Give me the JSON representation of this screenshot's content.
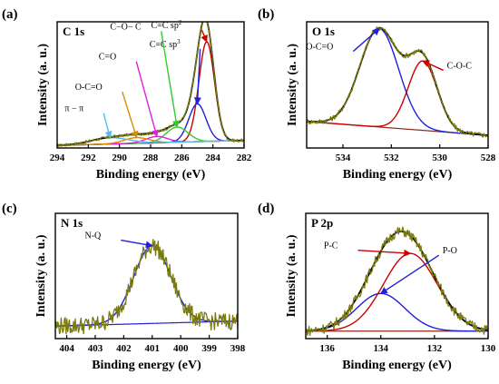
{
  "chart_data": [
    {
      "panel_label": "(a)",
      "type": "line",
      "title": "C 1s",
      "xlabel": "Binding energy (eV)",
      "ylabel": "Intensity (a. u.)",
      "xlim": [
        294,
        282
      ],
      "x_reversed": true,
      "x_ticks": [
        294,
        292,
        290,
        288,
        286,
        284,
        282
      ],
      "ylim": [
        0,
        1
      ],
      "series": [
        {
          "name": "C=C sp2",
          "color": "#cc0000",
          "type": "gaussian",
          "center": 284.4,
          "sigma": 0.5,
          "amplitude": 0.79
        },
        {
          "name": "C=C sp3",
          "color": "#1f1fdc",
          "type": "gaussian",
          "center": 285.0,
          "sigma": 0.55,
          "amplitude": 0.3
        },
        {
          "name": "C-O-C",
          "color": "#2fcc2f",
          "type": "gaussian",
          "center": 286.3,
          "sigma": 0.7,
          "amplitude": 0.12
        },
        {
          "name": "C=O",
          "color": "#dd22dd",
          "type": "gaussian",
          "center": 287.6,
          "sigma": 0.7,
          "amplitude": 0.05
        },
        {
          "name": "O-C=O",
          "color": "#d98c00",
          "type": "gaussian",
          "center": 288.9,
          "sigma": 0.8,
          "amplitude": 0.045
        },
        {
          "name": "π-π",
          "color": "#55bbee",
          "type": "gaussian",
          "center": 290.6,
          "sigma": 1.2,
          "amplitude": 0.05
        },
        {
          "role": "envelope",
          "color": "#000000",
          "type": "sum"
        },
        {
          "role": "raw",
          "color": "#7a7a10",
          "type": "noisy_sum",
          "noise": 0.012
        }
      ],
      "background": {
        "color": "#555555",
        "left": 0.02,
        "right": 0.06
      },
      "annotations": [
        {
          "text": "C=C sp",
          "sup": "2",
          "series": "C=C sp2",
          "x": 286.0,
          "y": 0.95
        },
        {
          "text": "C=C sp",
          "sup": "3",
          "series": "C=C sp3",
          "x": 286.1,
          "y": 0.8
        },
        {
          "text": "C−O− C",
          "series": "C-O-C",
          "x": 288.6,
          "y": 0.94
        },
        {
          "text": "C=O",
          "series": "C=O",
          "x": 290.2,
          "y": 0.7
        },
        {
          "text": "O-C=O",
          "series": "O-C=O",
          "x": 291.1,
          "y": 0.46
        },
        {
          "text": "π − π",
          "series": "π-π",
          "x": 292.3,
          "y": 0.29
        }
      ]
    },
    {
      "panel_label": "(b)",
      "type": "line",
      "title": "O 1s",
      "xlabel": "Binding energy (eV)",
      "ylabel": "Intensity (a. u.)",
      "xlim": [
        535.5,
        528
      ],
      "x_reversed": true,
      "x_ticks": [
        534,
        532,
        530,
        528
      ],
      "ylim": [
        0,
        1
      ],
      "series": [
        {
          "name": "O-C=O",
          "color": "#1f1fdc",
          "type": "gaussian",
          "center": 532.5,
          "sigma": 0.8,
          "amplitude": 0.78
        },
        {
          "name": "C-O-C",
          "color": "#cc0000",
          "type": "gaussian",
          "center": 530.7,
          "sigma": 0.6,
          "amplitude": 0.55
        },
        {
          "role": "envelope",
          "color": "#000000",
          "type": "sum"
        },
        {
          "role": "raw",
          "color": "#7a7a10",
          "type": "noisy_sum",
          "noise": 0.02
        }
      ],
      "background": {
        "color": "#8b2a1a",
        "left": 0.21,
        "right": 0.1
      },
      "annotations": [
        {
          "text": "O-C=O",
          "series": "O-C=O",
          "x": 534.4,
          "y": 0.78
        },
        {
          "text": "C-O-C",
          "series": "C-O-C",
          "x": 529.7,
          "y": 0.63
        }
      ]
    },
    {
      "panel_label": "(c)",
      "type": "line",
      "title": "N 1s",
      "xlabel": "Binding energy (eV)",
      "ylabel": "Intensity (a. u.)",
      "xlim": [
        404.4,
        398
      ],
      "x_reversed": true,
      "x_ticks": [
        404,
        403,
        402,
        401,
        400,
        399,
        398
      ],
      "ylim": [
        0,
        1
      ],
      "series": [
        {
          "name": "N-Q",
          "color": "#1f1fdc",
          "type": "gaussian",
          "center": 401.0,
          "sigma": 0.65,
          "amplitude": 0.62
        },
        {
          "role": "raw",
          "color": "#7a7a10",
          "type": "noisy_sum",
          "noise": 0.07
        }
      ],
      "background": {
        "color": "#1f1fdc",
        "left": 0.1,
        "right": 0.14
      },
      "annotations": [
        {
          "text": "N-Q",
          "series": "N-Q",
          "x": 402.8,
          "y": 0.8
        }
      ]
    },
    {
      "panel_label": "(d)",
      "type": "line",
      "title": "P 2p",
      "xlabel": "Binding energy (eV)",
      "ylabel": "Intensity (a. u.)",
      "xlim": [
        136.8,
        130
      ],
      "x_reversed": true,
      "x_ticks": [
        136,
        134,
        132,
        130
      ],
      "ylim": [
        0,
        1
      ],
      "series": [
        {
          "name": "P-C",
          "color": "#cc0000",
          "type": "gaussian",
          "center": 132.9,
          "sigma": 1.0,
          "amplitude": 0.62
        },
        {
          "name": "P-O",
          "color": "#1f1fdc",
          "type": "gaussian",
          "center": 134.0,
          "sigma": 0.9,
          "amplitude": 0.3
        },
        {
          "role": "envelope",
          "color": "#000000",
          "type": "sum"
        },
        {
          "role": "raw",
          "color": "#7a7a10",
          "type": "noisy_sum",
          "noise": 0.04
        }
      ],
      "background": {
        "color": "#8b2a1a",
        "left": 0.06,
        "right": 0.06
      },
      "annotations": [
        {
          "text": "P-C",
          "series": "P-C",
          "x": 135.6,
          "y": 0.72
        },
        {
          "text": "P-O",
          "series": "P-O",
          "x": 131.7,
          "y": 0.68
        }
      ]
    }
  ]
}
